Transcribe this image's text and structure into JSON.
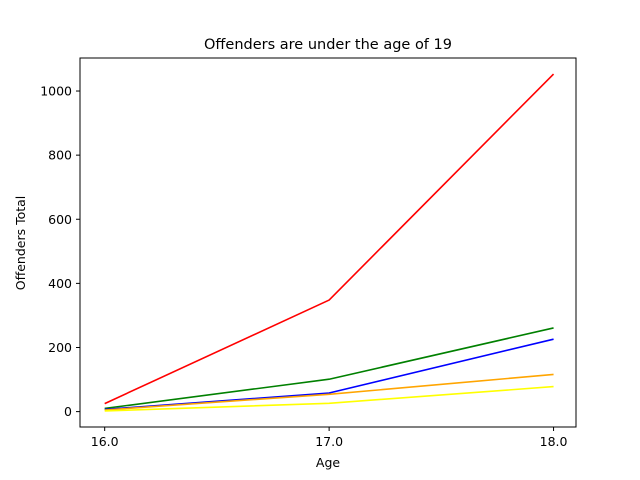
{
  "chart_data": {
    "type": "line",
    "title": "Offenders are under the age of 19",
    "xlabel": "Age",
    "ylabel": "Offenders Total",
    "x": [
      16.0,
      17.0,
      18.0
    ],
    "x_tick_labels": [
      "16.0",
      "17.0",
      "18.0"
    ],
    "y_ticks": [
      0,
      200,
      400,
      600,
      800,
      1000
    ],
    "y_tick_labels": [
      "0",
      "200",
      "400",
      "600",
      "800",
      "1000"
    ],
    "xlim": [
      15.89,
      18.1
    ],
    "ylim": [
      -48,
      1103
    ],
    "grid": false,
    "series": [
      {
        "color": "#ff0000",
        "values": [
          25,
          348,
          1053
        ]
      },
      {
        "color": "#008000",
        "values": [
          10,
          101,
          261
        ]
      },
      {
        "color": "#0000ff",
        "values": [
          7,
          58,
          226
        ]
      },
      {
        "color": "#ffa500",
        "values": [
          5,
          54,
          116
        ]
      },
      {
        "color": "#ffff00",
        "values": [
          2,
          26,
          78
        ]
      }
    ]
  }
}
